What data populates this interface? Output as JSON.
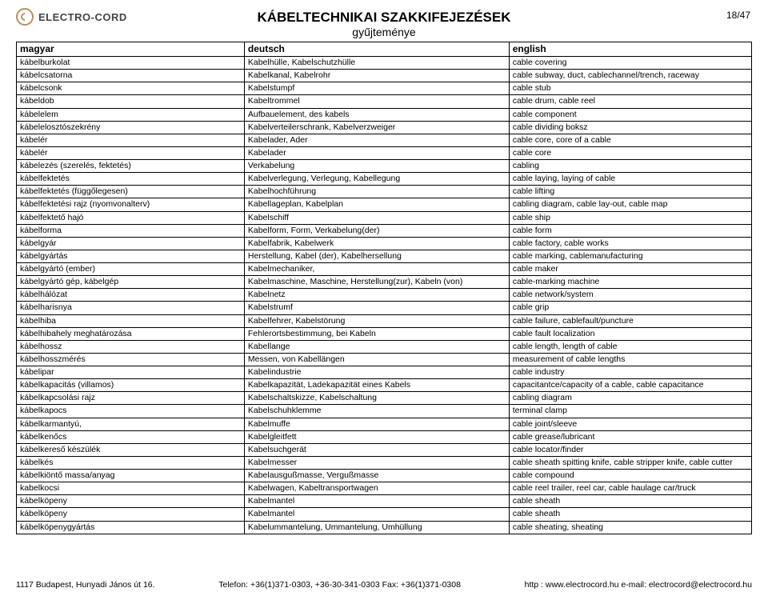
{
  "logo_text": "ELECTRO-CORD",
  "title": "KÁBELTECHNIKAI SZAKKIFEJEZÉSEK",
  "subtitle": "gyűjteménye",
  "page_number": "18/47",
  "table": {
    "columns": [
      "magyar",
      "deutsch",
      "english"
    ],
    "rows": [
      [
        "kábelburkolat",
        "Kabelhülle, Kabelschutzhülle",
        "cable covering"
      ],
      [
        "kábelcsatorna",
        "Kabelkanal, Kabelrohr",
        "cable subway, duct, cablechannel/trench, raceway"
      ],
      [
        "kábelcsonk",
        "Kabelstumpf",
        "cable stub"
      ],
      [
        "kábeldob",
        "Kabeltrommel",
        "cable drum, cable reel"
      ],
      [
        "kábelelem",
        "Aufbauelement, des kabels",
        "cable component"
      ],
      [
        "kábelelosztószekrény",
        "Kabelverteilerschrank, Kabelverzweiger",
        "cable dividing boksz"
      ],
      [
        "kábelér",
        "Kabelader, Ader",
        "cable core, core of a cable"
      ],
      [
        "kábelér",
        "Kabelader",
        "cable core"
      ],
      [
        "kábelezés (szerelés, fektetés)",
        "Verkabelung",
        "cabling"
      ],
      [
        "kábelfektetés",
        "Kabelverlegung, Verlegung, Kabellegung",
        "cable laying, laying of cable"
      ],
      [
        "kábelfektetés (függőlegesen)",
        "Kabelhochführung",
        "cable lifting"
      ],
      [
        "kábelfektetési rajz (nyomvonalterv)",
        "Kabellageplan, Kabelplan",
        "cabling diagram, cable lay-out, cable map"
      ],
      [
        "kábelfektető hajó",
        "Kabelschiff",
        "cable ship"
      ],
      [
        "kábelforma",
        "Kabelform, Form, Verkabelung(der)",
        "cable form"
      ],
      [
        "kábelgyár",
        "Kabelfabrik, Kabelwerk",
        "cable factory, cable works"
      ],
      [
        "kábelgyártás",
        "Herstellung, Kabel (der), Kabelhersellung",
        "cable marking, cablemanufacturing"
      ],
      [
        "kábelgyártó (ember)",
        "Kabelmechaniker,",
        "cable maker"
      ],
      [
        "kábelgyártó gép, kábelgép",
        "Kabelmaschine, Maschine, Herstellung(zur), Kabeln (von)",
        "cable-marking machine"
      ],
      [
        "kábelhálózat",
        "Kabelnetz",
        "cable network/system"
      ],
      [
        "kábelharisnya",
        "Kabelstrumf",
        "cable grip"
      ],
      [
        "kábelhiba",
        "Kabelfehrer, Kabelstörung",
        "cable failure, cablefault/puncture"
      ],
      [
        "kábelhibahely meghatározása",
        "Fehlerortsbestimmung, bei Kabeln",
        "cable fault localization"
      ],
      [
        "kábelhossz",
        "Kabellange",
        "cable length, length of cable"
      ],
      [
        "kábelhosszmérés",
        "Messen, von Kabellängen",
        "measurement of cable lengths"
      ],
      [
        "kábelipar",
        "Kabelindustrie",
        "cable industry"
      ],
      [
        "kábelkapacitás (villamos)",
        "Kabelkapazität, Ladekapazität eines Kabels",
        "capacitantce/capacity of a cable, cable capacitance"
      ],
      [
        "kábelkapcsolási rajz",
        "Kabelschaltskizze, Kabelschaltung",
        "cabling diagram"
      ],
      [
        "kábelkapocs",
        "Kabelschuhklemme",
        "terminal clamp"
      ],
      [
        "kábelkarmantyú,",
        "Kabelmuffe",
        "cable joint/sleeve"
      ],
      [
        "kábelkenőcs",
        "Kabelgleitfett",
        "cable grease/lubricant"
      ],
      [
        "kábelkereső készülék",
        "Kabelsuchgerät",
        "cable locator/finder"
      ],
      [
        "kábelkés",
        "Kabelmesser",
        "cable sheath spitting knife, cable  stripper knife, cable cutter"
      ],
      [
        "kábelkiöntő massa/anyag",
        "Kabelausgußmasse, Vergußmasse",
        "cable compound"
      ],
      [
        "kabelkocsi",
        "Kabelwagen, Kabeltransportwagen",
        "cable reel trailer, reel car, cable haulage car/truck"
      ],
      [
        "kábelköpeny",
        "Kabelmantel",
        "cable sheath"
      ],
      [
        "kábelköpeny",
        "Kabelmantel",
        "cable sheath"
      ],
      [
        "kábelköpenygyártás",
        "Kabelummantelung, Ummantelung, Umhüllung",
        "cable sheating, sheating"
      ]
    ]
  },
  "footer": {
    "address": "1117 Budapest, Hunyadi János út 16.",
    "phone": "Telefon: +36(1)371-0303, +36-30-341-0303 Fax: +36(1)371-0308",
    "web": "http : www.electrocord.hu  e-mail: electrocord@electrocord.hu"
  }
}
